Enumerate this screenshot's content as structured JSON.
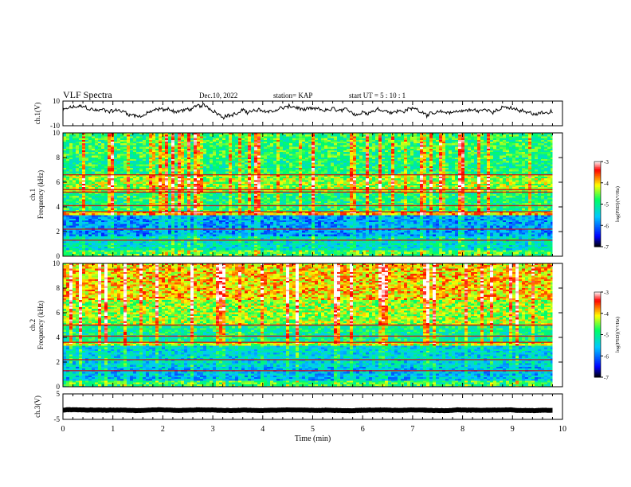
{
  "header": {
    "title": "VLF Spectra",
    "date": "Dec.10, 2022",
    "station": "station= KAP",
    "start": "start  UT =   5 : 10 : 1"
  },
  "chart_data": {
    "type": "heatmap",
    "x": {
      "label": "Time (min)",
      "range": [
        0,
        10
      ],
      "ticks": [
        "0",
        "1",
        "2",
        "3",
        "4",
        "5",
        "6",
        "7",
        "8",
        "9",
        "10"
      ],
      "data_end": 9.8
    },
    "panels": [
      {
        "name": "waveform-ch1",
        "type": "line",
        "ylabel": "ch.1(V)",
        "ylim": [
          -10,
          10
        ],
        "yticks": [
          "10",
          "-10"
        ],
        "level_mean": 2,
        "level_amplitude": 5
      },
      {
        "name": "spectrogram-ch1",
        "type": "heatmap",
        "ylabel_top": "ch.1",
        "ylabel": "Frequency (kHz)",
        "ylim": [
          0,
          10
        ],
        "yticks": [
          "0",
          "2",
          "4",
          "6",
          "8",
          "10"
        ],
        "bands": [
          {
            "from": 8,
            "to": 10,
            "level": -4.8
          },
          {
            "from": 6.6,
            "to": 8,
            "level": -4.9
          },
          {
            "from": 5.2,
            "to": 6.6,
            "level": -4.4
          },
          {
            "from": 3.6,
            "to": 5.2,
            "level": -4.9
          },
          {
            "from": 3.3,
            "to": 3.6,
            "level": -4.0
          },
          {
            "from": 1.6,
            "to": 3.3,
            "level": -5.8
          },
          {
            "from": 0.5,
            "to": 1.6,
            "level": -5.3
          },
          {
            "from": 0,
            "to": 0.5,
            "level": -4.7
          }
        ],
        "lines_khz": [
          6.6,
          5.4,
          5.2,
          4.1,
          3.6,
          2.2,
          1.3
        ]
      },
      {
        "name": "spectrogram-ch2",
        "type": "heatmap",
        "ylabel_top": "ch.2",
        "ylabel": "Frequency (kHz)",
        "ylim": [
          0,
          10
        ],
        "yticks": [
          "0",
          "2",
          "4",
          "6",
          "8",
          "10"
        ],
        "bands": [
          {
            "from": 7,
            "to": 10,
            "level": -4.0
          },
          {
            "from": 5,
            "to": 7,
            "level": -4.4
          },
          {
            "from": 3.6,
            "to": 5,
            "level": -5.0
          },
          {
            "from": 3.3,
            "to": 3.6,
            "level": -4.3
          },
          {
            "from": 1.6,
            "to": 3.3,
            "level": -5.4
          },
          {
            "from": 0.5,
            "to": 1.6,
            "level": -5.6
          },
          {
            "from": 0,
            "to": 0.5,
            "level": -4.8
          }
        ],
        "lines_khz": [
          5.0,
          4.1,
          3.6,
          2.2,
          1.3
        ]
      },
      {
        "name": "waveform-ch3",
        "type": "line",
        "ylabel": "ch.3(V)",
        "ylim": [
          -5,
          5
        ],
        "yticks": [
          "5",
          "-5"
        ],
        "level_mean": -1.4,
        "level_amplitude": 0.2
      }
    ],
    "colorbar": {
      "label": "log(PSD)(V²/Hz)",
      "range": [
        -7,
        -3
      ],
      "ticks": [
        "-3",
        "-4",
        "-5",
        "-6",
        "-7"
      ]
    },
    "colors": {
      "scale": [
        "#000000",
        "#0000ff",
        "#00c8ff",
        "#00ff64",
        "#ffff00",
        "#ff0000",
        "#ffffff"
      ]
    }
  }
}
